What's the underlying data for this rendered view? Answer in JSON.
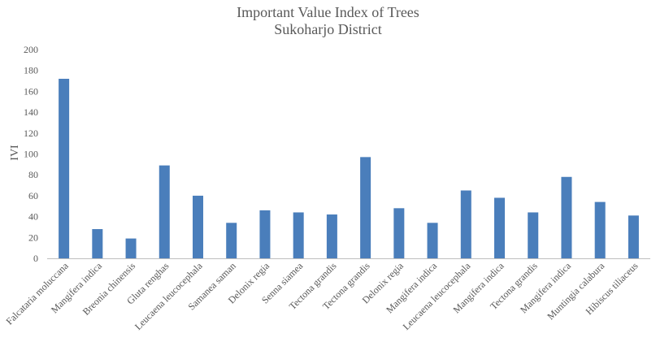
{
  "chart_data": {
    "type": "bar",
    "title": "Important Value Index of Trees",
    "subtitle": "Sukoharjo District",
    "xlabel": "",
    "ylabel": "IVI",
    "ylim": [
      0,
      200
    ],
    "yticks": [
      0,
      20,
      40,
      60,
      80,
      100,
      120,
      140,
      160,
      180,
      200
    ],
    "grid": false,
    "legend": "none",
    "categories": [
      "Falcataria moluccana",
      "Mangifera indica",
      "Breonia chinensis",
      "Gluta renghas",
      "Leucaena leucocephala",
      "Samanea saman",
      "Delonix regia",
      "Senna siamea",
      "Tectona grandis",
      "Tectona grandis",
      "Delonix regia",
      "Mangifera indica",
      "Leucaena leucocephala",
      "Mangifera indica",
      "Tectona grandis",
      "Mangifera indica",
      "Muntingia calabura",
      "Hibiscus tiliaceus"
    ],
    "series": [
      {
        "values": [
          172,
          28,
          19,
          89,
          60,
          34,
          46,
          44,
          42,
          97,
          48,
          34,
          65,
          58,
          44,
          78,
          54,
          41
        ]
      }
    ],
    "colors": {
      "bar": "#4a7ebb",
      "axis": "#bfbfbf",
      "text": "#595959"
    }
  }
}
